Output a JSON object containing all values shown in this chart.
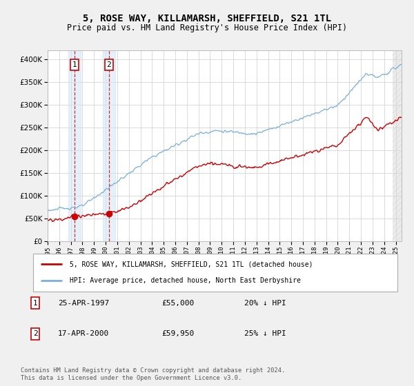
{
  "title": "5, ROSE WAY, KILLAMARSH, SHEFFIELD, S21 1TL",
  "subtitle": "Price paid vs. HM Land Registry's House Price Index (HPI)",
  "legend_line1": "5, ROSE WAY, KILLAMARSH, SHEFFIELD, S21 1TL (detached house)",
  "legend_line2": "HPI: Average price, detached house, North East Derbyshire",
  "sale1_date": "25-APR-1997",
  "sale1_price": "£55,000",
  "sale1_hpi": "20% ↓ HPI",
  "sale1_year": 1997.31,
  "sale1_value": 55000,
  "sale2_date": "17-APR-2000",
  "sale2_price": "£59,950",
  "sale2_hpi": "25% ↓ HPI",
  "sale2_year": 2000.29,
  "sale2_value": 59950,
  "footer": "Contains HM Land Registry data © Crown copyright and database right 2024.\nThis data is licensed under the Open Government Licence v3.0.",
  "ylim_max": 420000,
  "xlim_start": 1995.0,
  "xlim_end": 2025.5,
  "sale_color": "#cc0000",
  "hpi_color": "#7aaedc",
  "plot_bg": "#ffffff",
  "grid_color": "#cccccc",
  "fig_bg": "#f0f0f0"
}
